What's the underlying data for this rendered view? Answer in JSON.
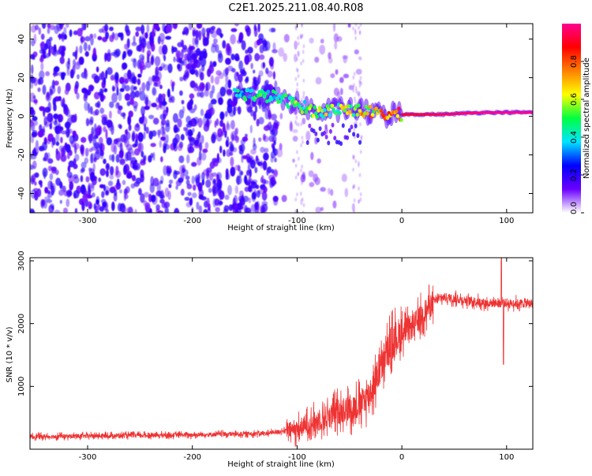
{
  "title": "C2E1.2025.211.08.40.R08",
  "chart_data": [
    {
      "type": "heatmap",
      "xlabel": "Height of straight line (km)",
      "ylabel": "Frequency (Hz)",
      "xlim": [
        -355,
        125
      ],
      "ylim": [
        -50,
        48
      ],
      "x_ticks": [
        -300,
        -200,
        -100,
        0,
        100
      ],
      "y_ticks": [
        -40,
        -20,
        0,
        20,
        40
      ],
      "colorbar": {
        "label": "Normalized spectral amplitude",
        "range": [
          0,
          1
        ],
        "ticks": [
          0.0,
          0.2,
          0.4,
          0.6,
          0.8
        ],
        "tick_labels": [
          "0.0",
          "0.2",
          "0.4",
          "0.6",
          "0.8"
        ],
        "colormap": [
          "#ffffff",
          "#6a00ff",
          "#0000ff",
          "#00e5ff",
          "#00ff40",
          "#ffff00",
          "#ff8000",
          "#ff0000",
          "#ff0090"
        ]
      },
      "signal_track": [
        {
          "x": -160,
          "y": 12,
          "amp": 0.45
        },
        {
          "x": -140,
          "y": 11,
          "amp": 0.5
        },
        {
          "x": -120,
          "y": 10,
          "amp": 0.5
        },
        {
          "x": -100,
          "y": 6,
          "amp": 0.55
        },
        {
          "x": -80,
          "y": 2,
          "amp": 0.6
        },
        {
          "x": -60,
          "y": 4,
          "amp": 0.65
        },
        {
          "x": -40,
          "y": 3,
          "amp": 0.7
        },
        {
          "x": -20,
          "y": 1,
          "amp": 0.8
        },
        {
          "x": 0,
          "y": 1,
          "amp": 0.9
        },
        {
          "x": 40,
          "y": 1,
          "amp": 0.95
        },
        {
          "x": 80,
          "y": 2,
          "amp": 1.0
        },
        {
          "x": 125,
          "y": 2,
          "amp": 1.0
        }
      ]
    },
    {
      "type": "line",
      "xlabel": "Height of straight line (km)",
      "ylabel": "SNR (10 * v/v)",
      "xlim": [
        -355,
        125
      ],
      "ylim": [
        0,
        3050
      ],
      "x_ticks": [
        -300,
        -200,
        -100,
        0,
        100
      ],
      "y_ticks": [
        1000,
        2000,
        3000
      ],
      "series_color": "#ee3333",
      "envelope": [
        {
          "x": -355,
          "y": 200
        },
        {
          "x": -300,
          "y": 210
        },
        {
          "x": -200,
          "y": 230
        },
        {
          "x": -130,
          "y": 250
        },
        {
          "x": -100,
          "y": 320
        },
        {
          "x": -80,
          "y": 450
        },
        {
          "x": -60,
          "y": 600
        },
        {
          "x": -40,
          "y": 700
        },
        {
          "x": -30,
          "y": 900
        },
        {
          "x": -20,
          "y": 1300
        },
        {
          "x": -10,
          "y": 1700
        },
        {
          "x": 0,
          "y": 1850
        },
        {
          "x": 10,
          "y": 1950
        },
        {
          "x": 20,
          "y": 2150
        },
        {
          "x": 30,
          "y": 2350
        },
        {
          "x": 40,
          "y": 2420
        },
        {
          "x": 80,
          "y": 2330
        },
        {
          "x": 125,
          "y": 2320
        }
      ],
      "spikes": [
        {
          "x": 95,
          "y": 3050
        },
        {
          "x": 97,
          "y": 1350
        }
      ]
    }
  ]
}
